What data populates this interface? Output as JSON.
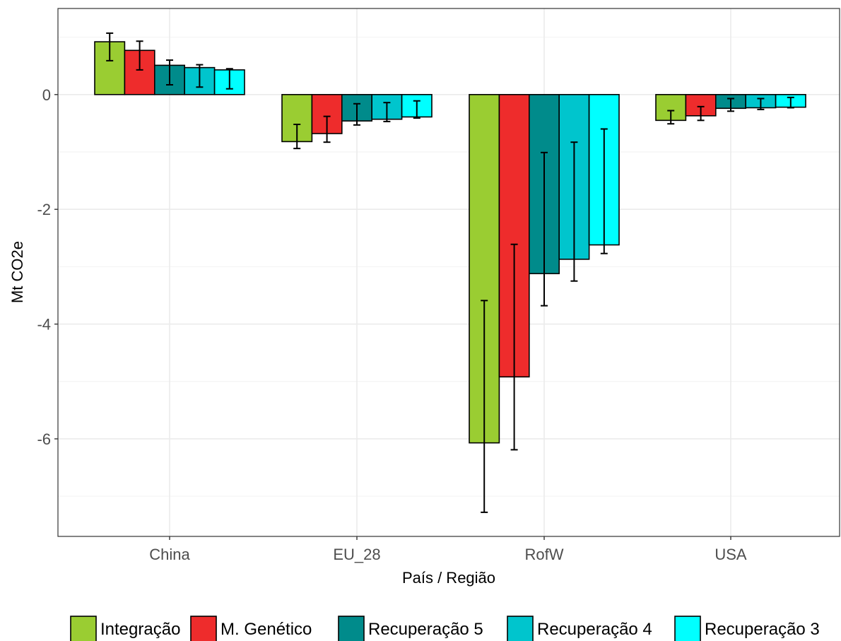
{
  "chart_data": {
    "type": "bar",
    "xlabel": "País / Região",
    "ylabel": "Mt CO2e",
    "categories": [
      "China",
      "EU_28",
      "RofW",
      "USA"
    ],
    "ylim": [
      -7.7,
      1.5
    ],
    "yticks": [
      0,
      -2,
      -4,
      -6
    ],
    "ytick_labels": [
      "0",
      "-2",
      "-4",
      "-6"
    ],
    "grid": true,
    "legend_position": "bottom",
    "error_bars": true,
    "series": [
      {
        "name": "Integração",
        "color": "#9acd32",
        "values": [
          0.92,
          -0.82,
          -6.07,
          -0.45
        ],
        "errors": [
          [
            0.59,
            1.07
          ],
          [
            -0.94,
            -0.52
          ],
          [
            -7.28,
            -3.59
          ],
          [
            -0.51,
            -0.28
          ]
        ]
      },
      {
        "name": "M. Genético",
        "color": "#ee2c2c",
        "values": [
          0.77,
          -0.68,
          -4.92,
          -0.37
        ],
        "errors": [
          [
            0.43,
            0.93
          ],
          [
            -0.83,
            -0.38
          ],
          [
            -6.19,
            -2.61
          ],
          [
            -0.45,
            -0.21
          ]
        ]
      },
      {
        "name": "Recuperação 5",
        "color": "#008b8b",
        "values": [
          0.51,
          -0.46,
          -3.12,
          -0.24
        ],
        "errors": [
          [
            0.17,
            0.6
          ],
          [
            -0.53,
            -0.16
          ],
          [
            -3.68,
            -1.01
          ],
          [
            -0.29,
            -0.07
          ]
        ]
      },
      {
        "name": "Recuperação 4",
        "color": "#00c5cd",
        "values": [
          0.47,
          -0.43,
          -2.87,
          -0.23
        ],
        "errors": [
          [
            0.13,
            0.52
          ],
          [
            -0.47,
            -0.14
          ],
          [
            -3.25,
            -0.83
          ],
          [
            -0.26,
            -0.07
          ]
        ]
      },
      {
        "name": "Recuperação 3",
        "color": "#00ffff",
        "values": [
          0.43,
          -0.39,
          -2.62,
          -0.22
        ],
        "errors": [
          [
            0.1,
            0.45
          ],
          [
            -0.41,
            -0.11
          ],
          [
            -2.77,
            -0.6
          ],
          [
            -0.23,
            -0.05
          ]
        ]
      }
    ]
  }
}
